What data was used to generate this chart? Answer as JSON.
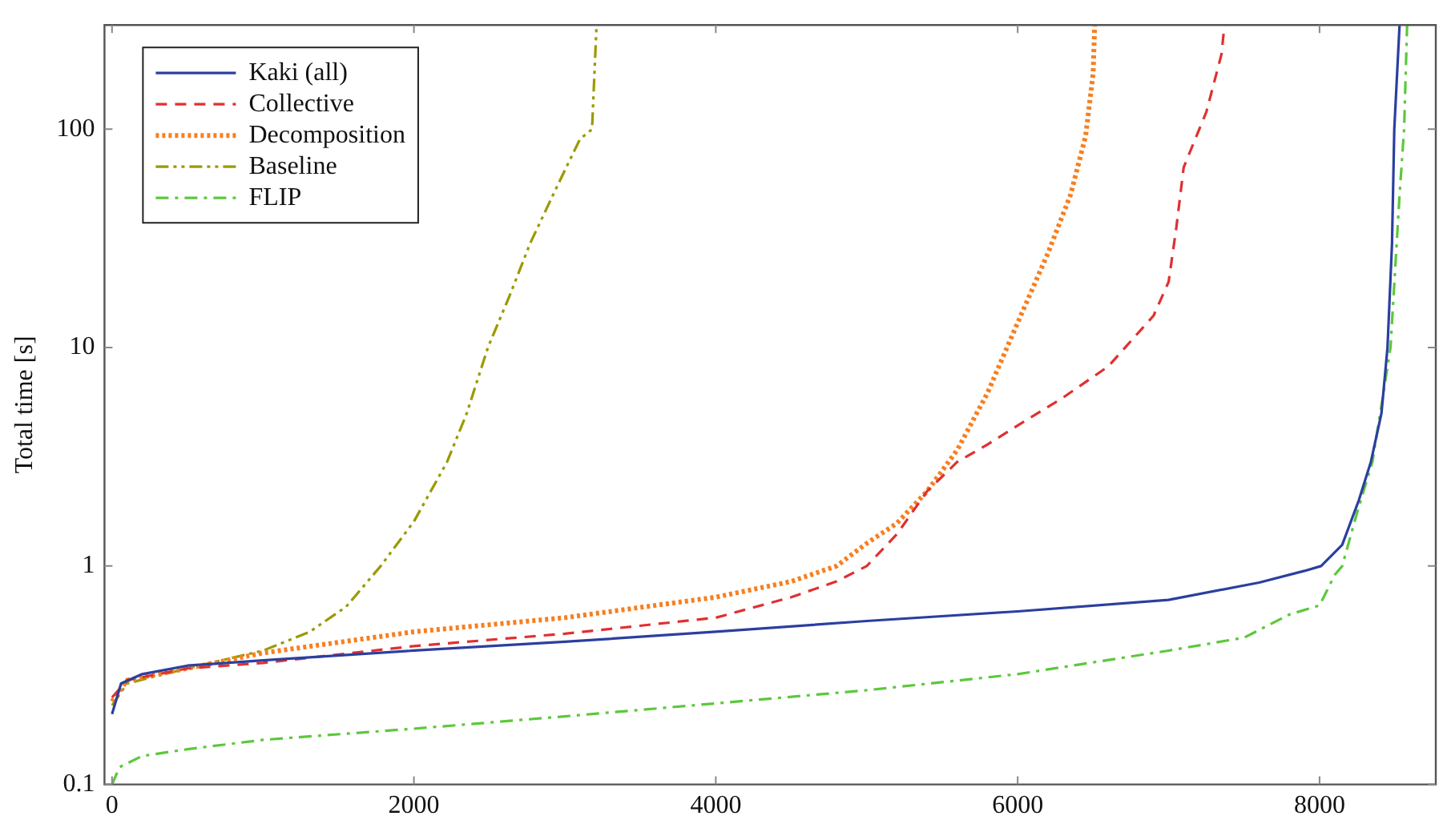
{
  "chart_data": {
    "type": "line",
    "ylabel": "Total time [s]",
    "log": "y",
    "grid": false,
    "legend": "top left",
    "marker": "none",
    "xlim": [
      -50,
      8770
    ],
    "xticks": [
      0,
      2000,
      4000,
      6000,
      8000
    ],
    "ylim": [
      0.1,
      300
    ],
    "yticks": [
      0.1,
      1,
      10,
      100
    ],
    "series": [
      {
        "name": "Kaki (all)",
        "color": "#2b3fa0",
        "line_style": "solid",
        "x": [
          0,
          60,
          200,
          500,
          1000,
          2000,
          3000,
          4000,
          5000,
          6000,
          7000,
          7600,
          7900,
          8010,
          8150,
          8260,
          8340,
          8410,
          8450,
          8480,
          8495,
          8530
        ],
        "values": [
          0.21,
          0.29,
          0.32,
          0.35,
          0.37,
          0.41,
          0.45,
          0.5,
          0.56,
          0.62,
          0.7,
          0.84,
          0.95,
          1.0,
          1.25,
          2,
          3,
          5,
          10,
          30,
          100,
          300
        ]
      },
      {
        "name": "Collective",
        "color": "#e03030",
        "line_style": "dashed",
        "x": [
          0,
          100,
          500,
          1000,
          2000,
          3000,
          4000,
          4500,
          4800,
          5000,
          5200,
          5400,
          5600,
          5800,
          6000,
          6300,
          6600,
          6900,
          7000,
          7050,
          7100,
          7250,
          7350,
          7370
        ],
        "values": [
          0.25,
          0.3,
          0.34,
          0.36,
          0.43,
          0.49,
          0.58,
          0.72,
          0.85,
          1.0,
          1.4,
          2.2,
          3.0,
          3.6,
          4.4,
          5.9,
          8.2,
          14,
          20,
          35,
          67,
          120,
          220,
          300
        ]
      },
      {
        "name": "Decomposition",
        "color": "#f77f1f",
        "line_style": "dotted",
        "x": [
          0,
          100,
          500,
          1000,
          2000,
          3000,
          4000,
          4500,
          4800,
          5000,
          5200,
          5400,
          5600,
          5800,
          6000,
          6200,
          6350,
          6450,
          6500,
          6510
        ],
        "values": [
          0.24,
          0.3,
          0.34,
          0.4,
          0.5,
          0.58,
          0.72,
          0.85,
          1.0,
          1.27,
          1.57,
          2.2,
          3.4,
          6.2,
          13,
          27,
          50,
          93,
          180,
          300
        ]
      },
      {
        "name": "Baseline",
        "color": "#9a9a00",
        "line_style": "dashdotdot",
        "x": [
          0,
          100,
          500,
          1000,
          1310,
          1550,
          1780,
          2000,
          2220,
          2350,
          2490,
          2630,
          2770,
          2950,
          3100,
          3180,
          3210
        ],
        "values": [
          0.23,
          0.29,
          0.34,
          0.41,
          0.5,
          0.65,
          1.0,
          1.6,
          3,
          5,
          10,
          17,
          30,
          55,
          90,
          100,
          300
        ]
      },
      {
        "name": "FLIP",
        "color": "#5cc83c",
        "line_style": "dashdot",
        "x": [
          0,
          50,
          200,
          500,
          1000,
          2000,
          3000,
          4000,
          5000,
          6000,
          7000,
          7500,
          7800,
          8000,
          8100,
          8150,
          8250,
          8350,
          8420,
          8470,
          8530,
          8560,
          8580
        ],
        "values": [
          0.1,
          0.12,
          0.135,
          0.145,
          0.16,
          0.18,
          0.205,
          0.235,
          0.27,
          0.32,
          0.41,
          0.47,
          0.6,
          0.66,
          0.91,
          1.0,
          1.77,
          3,
          6,
          10,
          50,
          100,
          300
        ]
      }
    ]
  }
}
